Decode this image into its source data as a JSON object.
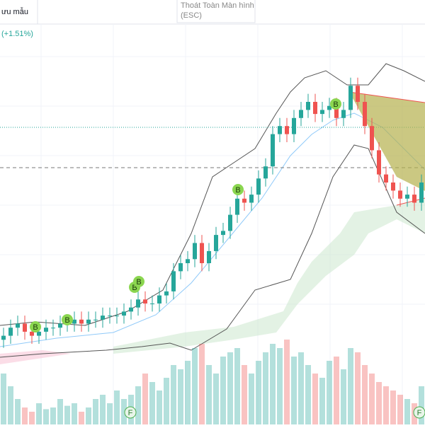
{
  "header": {
    "save_label": "ưu mẫu",
    "exit_label": "Thoát Toàn Màn hình",
    "exit_hint": "(ESC)"
  },
  "change_label": "(+1.51%)",
  "chart_data": {
    "type": "candlestick",
    "open": [
      21,
      22,
      24,
      25,
      23,
      22,
      23,
      24,
      24,
      25,
      25,
      26,
      25,
      26,
      26,
      27,
      27,
      27,
      28,
      29,
      31,
      30,
      30,
      32,
      33,
      38,
      40,
      41,
      45,
      40,
      43,
      47,
      48,
      52,
      56,
      55,
      57,
      61,
      64,
      72,
      74,
      72,
      76,
      78,
      80,
      77,
      78,
      79,
      76,
      78,
      84,
      80,
      74,
      68,
      62,
      60,
      58,
      56,
      57,
      55
    ],
    "close": [
      22,
      24,
      25,
      23,
      22,
      23,
      24,
      24,
      25,
      25,
      26,
      25,
      26,
      26,
      27,
      27,
      27,
      28,
      29,
      31,
      30,
      30,
      32,
      33,
      38,
      40,
      41,
      45,
      40,
      43,
      47,
      48,
      52,
      56,
      55,
      57,
      61,
      64,
      72,
      74,
      72,
      76,
      78,
      80,
      77,
      78,
      79,
      76,
      78,
      84,
      80,
      74,
      68,
      62,
      60,
      58,
      56,
      57,
      55,
      60
    ],
    "high": [
      24,
      26,
      27,
      27,
      25,
      25,
      26,
      26,
      27,
      27,
      28,
      28,
      28,
      28,
      29,
      29,
      29,
      30,
      31,
      33,
      33,
      32,
      34,
      35,
      40,
      42,
      43,
      47,
      47,
      45,
      49,
      50,
      54,
      58,
      58,
      59,
      63,
      66,
      74,
      76,
      76,
      78,
      80,
      82,
      82,
      80,
      81,
      81,
      80,
      86,
      86,
      82,
      76,
      70,
      64,
      62,
      60,
      59,
      59,
      62
    ],
    "low": [
      19,
      20,
      22,
      21,
      20,
      20,
      21,
      22,
      22,
      23,
      23,
      23,
      23,
      24,
      24,
      25,
      25,
      25,
      26,
      27,
      28,
      28,
      28,
      30,
      31,
      36,
      38,
      39,
      38,
      38,
      41,
      45,
      46,
      50,
      53,
      53,
      55,
      59,
      62,
      70,
      70,
      70,
      74,
      76,
      75,
      75,
      76,
      74,
      74,
      76,
      78,
      72,
      66,
      60,
      58,
      56,
      54,
      54,
      53,
      53
    ],
    "volume": [
      60,
      45,
      30,
      20,
      15,
      25,
      18,
      20,
      30,
      22,
      25,
      15,
      20,
      30,
      35,
      25,
      40,
      30,
      35,
      45,
      60,
      50,
      40,
      55,
      70,
      65,
      75,
      90,
      95,
      70,
      60,
      80,
      85,
      90,
      70,
      60,
      75,
      85,
      95,
      90,
      100,
      80,
      85,
      70,
      60,
      55,
      75,
      80,
      65,
      90,
      85,
      70,
      60,
      50,
      45,
      40,
      35,
      30,
      25,
      45
    ],
    "ylim": [
      0,
      100
    ],
    "volume_lim": [
      0,
      100
    ],
    "up_color": "#26a69a",
    "down_color": "#ef5350",
    "markers": [
      "B",
      "B",
      "B",
      "B",
      "B",
      "B"
    ],
    "flags": [
      "F",
      "F"
    ]
  }
}
